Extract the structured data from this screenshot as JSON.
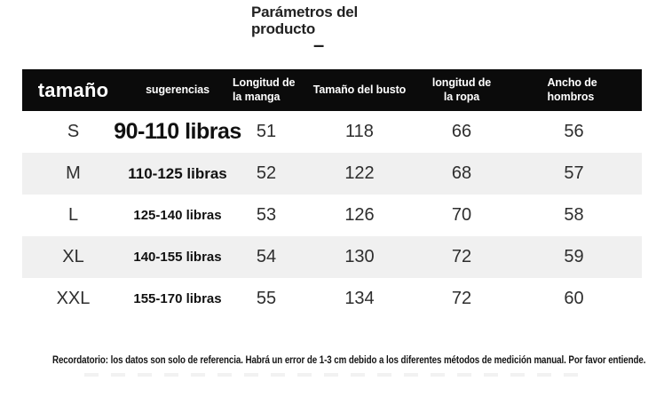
{
  "page_title": {
    "line1": "Parámetros del",
    "line2": "producto",
    "dash": "–"
  },
  "chart_data": {
    "type": "table",
    "title": "Parámetros del producto",
    "columns": [
      {
        "key": "size",
        "label": "tamaño"
      },
      {
        "key": "suggestion",
        "label": "sugerencias"
      },
      {
        "key": "sleeve",
        "label": "Longitud de la manga"
      },
      {
        "key": "bust",
        "label": "Tamaño del busto"
      },
      {
        "key": "length",
        "label": "longitud de la ropa"
      },
      {
        "key": "shoulder",
        "label": "Ancho de hombros"
      }
    ],
    "rows": [
      {
        "size": "S",
        "suggestion": "90-110 libras",
        "sleeve": 51,
        "bust": 118,
        "length": 66,
        "shoulder": 56
      },
      {
        "size": "M",
        "suggestion": "110-125 libras",
        "sleeve": 52,
        "bust": 122,
        "length": 68,
        "shoulder": 57
      },
      {
        "size": "L",
        "suggestion": "125-140 libras",
        "sleeve": 53,
        "bust": 126,
        "length": 70,
        "shoulder": 58
      },
      {
        "size": "XL",
        "suggestion": "140-155 libras",
        "sleeve": 54,
        "bust": 130,
        "length": 72,
        "shoulder": 59
      },
      {
        "size": "XXL",
        "suggestion": "155-170 libras",
        "sleeve": 55,
        "bust": 134,
        "length": 72,
        "shoulder": 60
      }
    ]
  },
  "note": "Recordatorio: los datos son solo de referencia. Habrá un error de 1-3 cm debido a los diferentes métodos de medición manual. Por favor entiende.",
  "colors": {
    "header_bg": "#0b0b0b",
    "header_text": "#ffffff",
    "alt_row_bg": "#f0f0f0",
    "body_text": "#2e2e2e"
  }
}
